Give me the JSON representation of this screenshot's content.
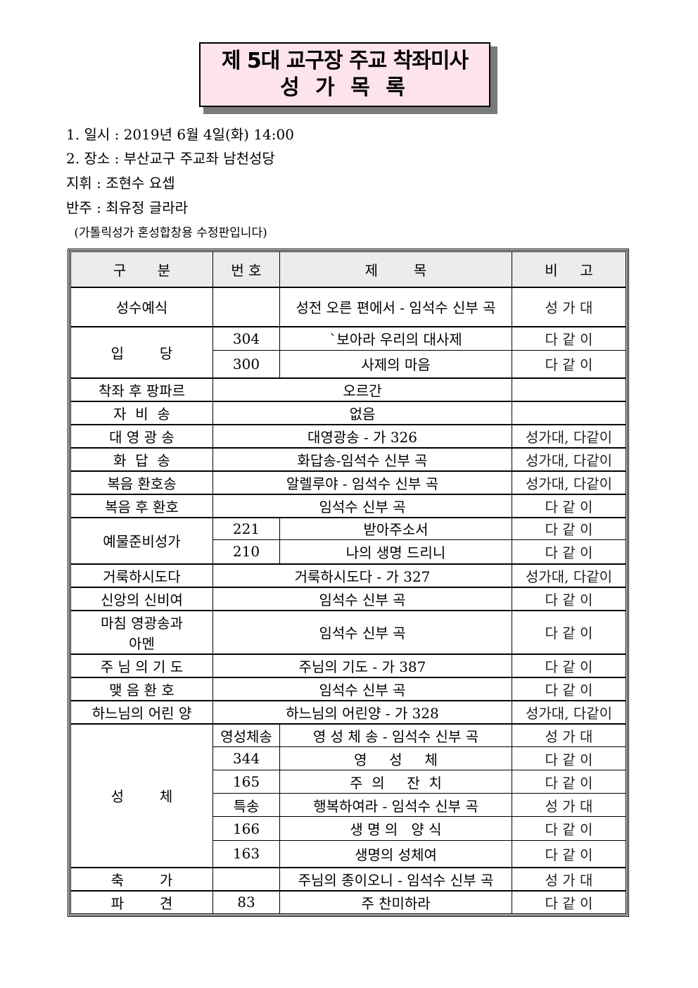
{
  "title": {
    "line1": "제 5대 교구장 주교 착좌미사",
    "line2": "성 가 목 록",
    "background_color": "#fde4ea"
  },
  "info": {
    "datetime": "1. 일시 : 2019년 6월 4일(화) 14:00",
    "place": "2. 장소 : 부산교구 주교좌 남천성당",
    "conductor": "지휘 : 조현수 요셉",
    "accompanist": "반주 : 최유정 글라라",
    "note": " (가톨릭성가 혼성합창용 수정판입니다)"
  },
  "table": {
    "headers": [
      "구       분",
      "번 호",
      "제        목",
      "비     고"
    ],
    "groups": [
      {
        "section": "성수예식",
        "items": [
          {
            "number": "",
            "title": "성전 오른 편에서 - 임석수 신부 곡",
            "note": "성 가 대"
          }
        ]
      },
      {
        "section": "입        당",
        "items": [
          {
            "number": "304",
            "title": "`보아라 우리의 대사제",
            "note": "다 같 이"
          },
          {
            "number": "300",
            "title": "사제의 마음",
            "note": "다 같 이"
          }
        ]
      },
      {
        "section": "착좌 후 팡파르",
        "items": [
          {
            "title": "오르간",
            "note": ""
          }
        ]
      },
      {
        "section": "자  비  송",
        "items": [
          {
            "title": "없음",
            "note": ""
          }
        ]
      },
      {
        "section": "대 영 광 송",
        "items": [
          {
            "title": "대영광송 - 가 326",
            "note": "성가대, 다같이"
          }
        ]
      },
      {
        "section": "화  답  송",
        "items": [
          {
            "title": "화답송-임석수 신부 곡",
            "note": "성가대, 다같이"
          }
        ]
      },
      {
        "section": "복음 환호송",
        "items": [
          {
            "title": "알렐루야 - 임석수 신부 곡",
            "note": "성가대, 다같이"
          }
        ]
      },
      {
        "section": "복음 후 환호",
        "items": [
          {
            "title": "임석수 신부 곡",
            "note": "다 같 이"
          }
        ]
      },
      {
        "section": "예물준비성가",
        "items": [
          {
            "number": "221",
            "title": "받아주소서",
            "note": "다 같 이"
          },
          {
            "number": "210",
            "title": "나의 생명 드리니",
            "note": "다 같 이"
          }
        ]
      },
      {
        "section": "거룩하시도다",
        "items": [
          {
            "title": "거룩하시도다 - 가 327",
            "note": "성가대, 다같이"
          }
        ]
      },
      {
        "section": "신앙의 신비여",
        "items": [
          {
            "title": "임석수 신부 곡",
            "note": "다 같 이"
          }
        ]
      },
      {
        "section": "마침 영광송과\n아멘",
        "items": [
          {
            "title": "임석수 신부 곡",
            "note": "다 같 이"
          }
        ]
      },
      {
        "section": "주 님 의 기 도",
        "items": [
          {
            "title": "주님의 기도 - 가 387",
            "note": "다 같 이"
          }
        ]
      },
      {
        "section": "맺 음 환 호",
        "items": [
          {
            "title": "임석수 신부 곡",
            "note": "다 같 이"
          }
        ]
      },
      {
        "section": "하느님의 어린 양",
        "items": [
          {
            "title": "하느님의 어린양 - 가 328",
            "note": "성가대, 다같이"
          }
        ]
      },
      {
        "section": "성        체",
        "items": [
          {
            "number": "영성체송",
            "title": "영 성 체 송 - 임석수 신부 곡",
            "note": "성 가 대"
          },
          {
            "number": "344",
            "title": "영     성     체",
            "note": "다 같 이"
          },
          {
            "number": "165",
            "title": "주  의     잔  치",
            "note": "다 같 이"
          },
          {
            "number": "특송",
            "title": "행복하여라 - 임석수 신부 곡",
            "note": "성 가 대"
          },
          {
            "number": "166",
            "title": "생 명 의   양 식",
            "note": "다 같 이"
          },
          {
            "number": "163",
            "title": "생명의 성체여",
            "note": "다 같 이"
          }
        ]
      },
      {
        "section": "축        가",
        "items": [
          {
            "number": "",
            "title": "주님의 종이오니 - 임석수 신부 곡",
            "note": "성 가 대"
          }
        ]
      },
      {
        "section": "파        견",
        "items": [
          {
            "number": "83",
            "title": "주 찬미하라",
            "note": "다 같 이"
          }
        ]
      }
    ]
  }
}
